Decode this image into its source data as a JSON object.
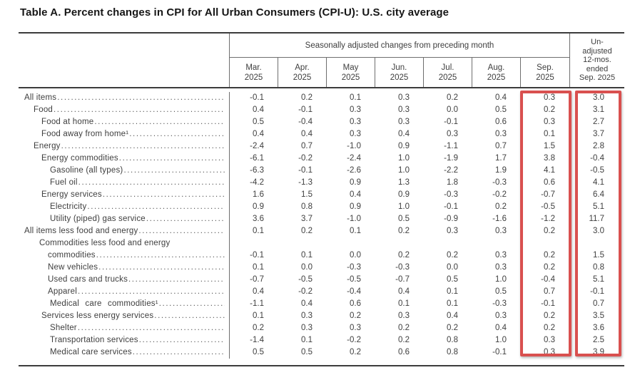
{
  "title": "Table A. Percent changes in CPI for All Urban Consumers (CPI-U): U.S. city average",
  "table": {
    "group_header": "Seasonally adjusted changes from preceding month",
    "month_columns": [
      {
        "line1": "Mar.",
        "line2": "2025"
      },
      {
        "line1": "Apr.",
        "line2": "2025"
      },
      {
        "line1": "May",
        "line2": "2025"
      },
      {
        "line1": "Jun.",
        "line2": "2025"
      },
      {
        "line1": "Jul.",
        "line2": "2025"
      },
      {
        "line1": "Aug.",
        "line2": "2025"
      },
      {
        "line1": "Sep.",
        "line2": "2025"
      }
    ],
    "unadjusted_header_lines": [
      "Un-",
      "adjusted",
      "12-mos.",
      "ended",
      "Sep. 2025"
    ],
    "highlight_color": "#d9504f",
    "highlighted_columns": [
      "Sep. 2025",
      "Unadjusted 12-mos. ended Sep. 2025"
    ],
    "rows": [
      {
        "label": "All items",
        "level": 0,
        "values": [
          "-0.1",
          "0.2",
          "0.1",
          "0.3",
          "0.2",
          "0.4",
          "0.3",
          "3.0"
        ]
      },
      {
        "label": "Food",
        "level": 1,
        "values": [
          "0.4",
          "-0.1",
          "0.3",
          "0.3",
          "0.0",
          "0.5",
          "0.2",
          "3.1"
        ]
      },
      {
        "label": "Food at home",
        "level": 2,
        "values": [
          "0.5",
          "-0.4",
          "0.3",
          "0.3",
          "-0.1",
          "0.6",
          "0.3",
          "2.7"
        ]
      },
      {
        "label": "Food away from home¹",
        "level": 2,
        "values": [
          "0.4",
          "0.4",
          "0.3",
          "0.4",
          "0.3",
          "0.3",
          "0.1",
          "3.7"
        ]
      },
      {
        "label": "Energy",
        "level": 1,
        "values": [
          "-2.4",
          "0.7",
          "-1.0",
          "0.9",
          "-1.1",
          "0.7",
          "1.5",
          "2.8"
        ]
      },
      {
        "label": "Energy commodities",
        "level": 2,
        "values": [
          "-6.1",
          "-0.2",
          "-2.4",
          "1.0",
          "-1.9",
          "1.7",
          "3.8",
          "-0.4"
        ]
      },
      {
        "label": "Gasoline (all types)",
        "level": 3,
        "values": [
          "-6.3",
          "-0.1",
          "-2.6",
          "1.0",
          "-2.2",
          "1.9",
          "4.1",
          "-0.5"
        ]
      },
      {
        "label": "Fuel oil",
        "level": 3,
        "values": [
          "-4.2",
          "-1.3",
          "0.9",
          "1.3",
          "1.8",
          "-0.3",
          "0.6",
          "4.1"
        ]
      },
      {
        "label": "Energy services",
        "level": 2,
        "values": [
          "1.6",
          "1.5",
          "0.4",
          "0.9",
          "-0.3",
          "-0.2",
          "-0.7",
          "6.4"
        ]
      },
      {
        "label": "Electricity",
        "level": 3,
        "values": [
          "0.9",
          "0.8",
          "0.9",
          "1.0",
          "-0.1",
          "0.2",
          "-0.5",
          "5.1"
        ]
      },
      {
        "label": "Utility (piped) gas service",
        "level": 3,
        "values": [
          "3.6",
          "3.7",
          "-1.0",
          "0.5",
          "-0.9",
          "-1.6",
          "-1.2",
          "11.7"
        ]
      },
      {
        "label": "All items less food and energy",
        "level": 0,
        "values": [
          "0.1",
          "0.2",
          "0.1",
          "0.2",
          "0.3",
          "0.3",
          "0.2",
          "3.0"
        ]
      },
      {
        "label": "Commodities less food and energy",
        "label2": "commodities",
        "level": 2,
        "values": [
          "-0.1",
          "0.1",
          "0.0",
          "0.2",
          "0.2",
          "0.3",
          "0.2",
          "1.5"
        ]
      },
      {
        "label": "New vehicles",
        "level": 3,
        "narrow": true,
        "values": [
          "0.1",
          "0.0",
          "-0.3",
          "-0.3",
          "0.0",
          "0.3",
          "0.2",
          "0.8"
        ]
      },
      {
        "label": "Used cars and trucks",
        "level": 3,
        "narrow": true,
        "values": [
          "-0.7",
          "-0.5",
          "-0.5",
          "-0.7",
          "0.5",
          "1.0",
          "-0.4",
          "5.1"
        ]
      },
      {
        "label": "Apparel",
        "level": 3,
        "narrow": true,
        "values": [
          "0.4",
          "-0.2",
          "-0.4",
          "0.4",
          "0.1",
          "0.5",
          "0.7",
          "-0.1"
        ]
      },
      {
        "label": "Medical care commodities¹",
        "level": 3,
        "spread": true,
        "values": [
          "-1.1",
          "0.4",
          "0.6",
          "0.1",
          "0.1",
          "-0.3",
          "-0.1",
          "0.7"
        ]
      },
      {
        "label": "Services less energy services",
        "level": 2,
        "values": [
          "0.1",
          "0.3",
          "0.2",
          "0.3",
          "0.4",
          "0.3",
          "0.2",
          "3.5"
        ]
      },
      {
        "label": "Shelter",
        "level": 3,
        "values": [
          "0.2",
          "0.3",
          "0.3",
          "0.2",
          "0.2",
          "0.4",
          "0.2",
          "3.6"
        ]
      },
      {
        "label": "Transportation services",
        "level": 3,
        "values": [
          "-1.4",
          "0.1",
          "-0.2",
          "0.2",
          "0.8",
          "1.0",
          "0.3",
          "2.5"
        ]
      },
      {
        "label": "Medical care services",
        "level": 3,
        "values": [
          "0.5",
          "0.5",
          "0.2",
          "0.6",
          "0.8",
          "-0.1",
          "0.3",
          "3.9"
        ]
      }
    ]
  }
}
